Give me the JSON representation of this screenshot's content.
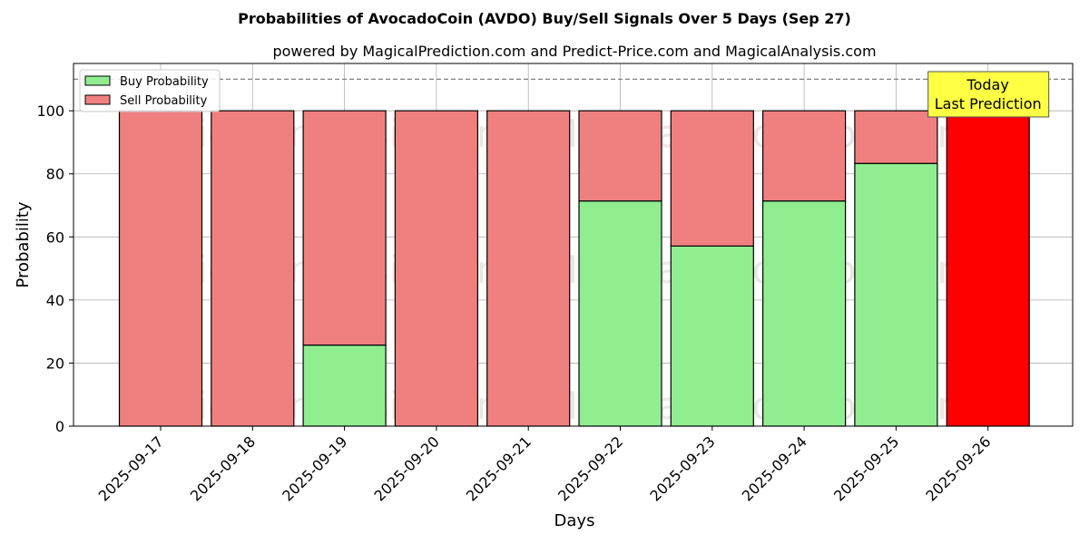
{
  "chart_data": {
    "type": "bar",
    "stacked": true,
    "title": "Probabilities of AvocadoCoin (AVDO) Buy/Sell Signals Over 5 Days (Sep 27)",
    "subtitle": "powered by MagicalPrediction.com and Predict-Price.com and MagicalAnalysis.com",
    "xlabel": "Days",
    "ylabel": "Probability",
    "ylim": [
      0,
      115
    ],
    "yticks": [
      0,
      20,
      40,
      60,
      80,
      100
    ],
    "grid": true,
    "legend_position": "top-left",
    "categories": [
      "2025-09-17",
      "2025-09-18",
      "2025-09-19",
      "2025-09-20",
      "2025-09-21",
      "2025-09-22",
      "2025-09-23",
      "2025-09-24",
      "2025-09-25",
      "2025-09-26"
    ],
    "series": [
      {
        "name": "Buy Probability",
        "color": "#90ee90",
        "values": [
          0,
          0,
          25.7,
          0,
          0,
          71.4,
          57.1,
          71.4,
          83.3,
          0
        ]
      },
      {
        "name": "Sell Probability",
        "color": "#f08080",
        "values": [
          100,
          100,
          74.3,
          100,
          100,
          28.6,
          42.9,
          28.6,
          16.7,
          100
        ]
      }
    ],
    "highlight": {
      "category": "2025-09-26",
      "color": "#ff0000"
    },
    "reference_line": {
      "y": 110,
      "style": "dashed",
      "color": "#808080"
    },
    "annotation": {
      "lines": [
        "Today",
        "Last Prediction"
      ],
      "background": "#ffff44"
    },
    "watermarks": [
      "MagicalAnalysis.com",
      "MagicalPrediction.com"
    ]
  }
}
